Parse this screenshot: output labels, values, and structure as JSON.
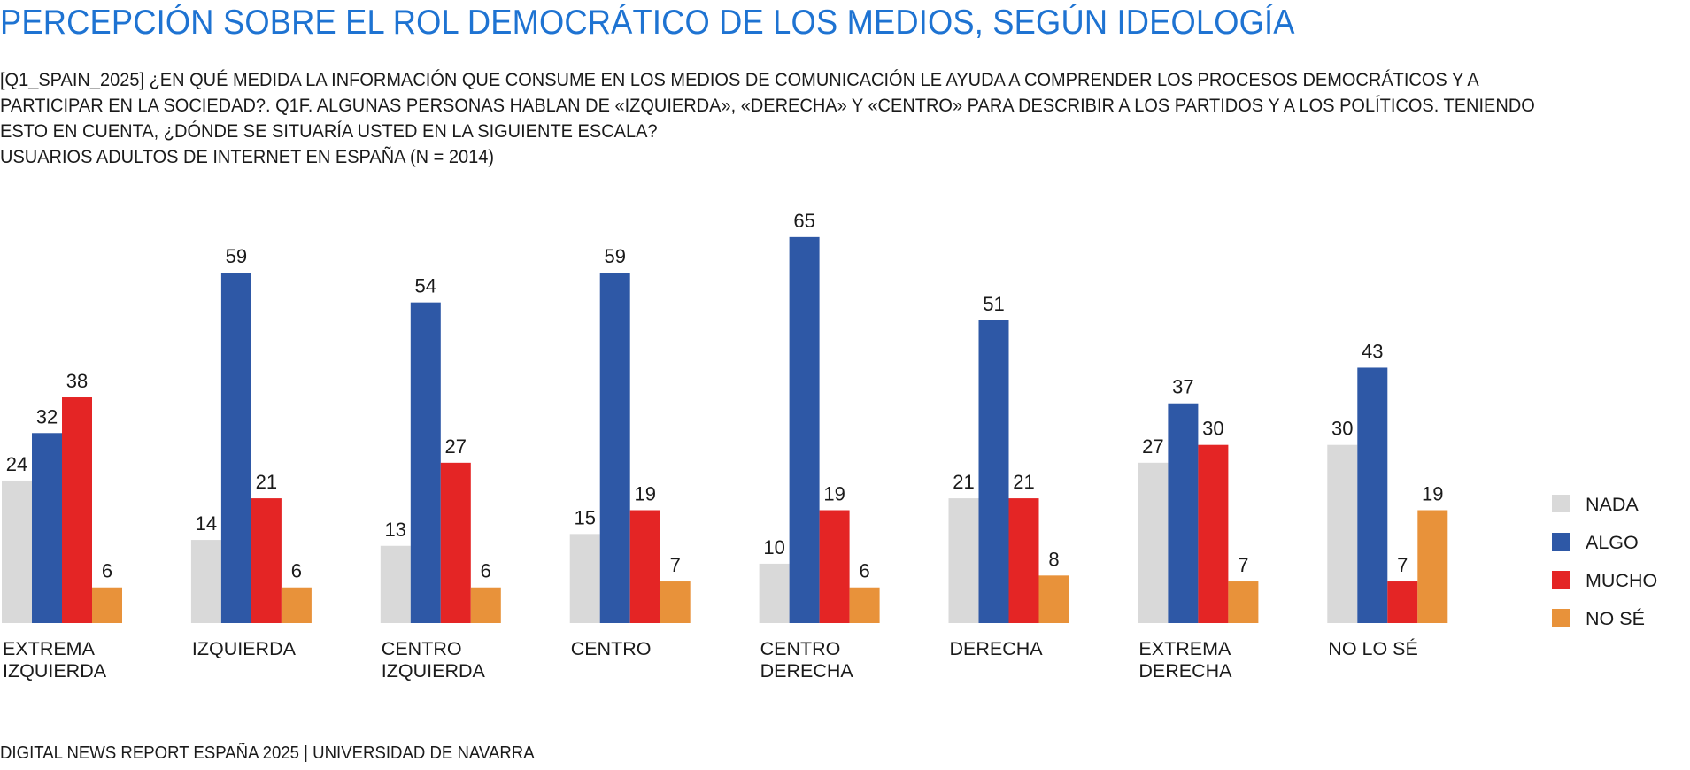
{
  "header": {
    "title": "PERCEPCIÓN SOBRE EL ROL DEMOCRÁTICO DE LOS MEDIOS, SEGÚN IDEOLOGÍA",
    "subtitle_lines": [
      "[Q1_SPAIN_2025] ¿EN QUÉ MEDIDA LA INFORMACIÓN QUE CONSUME EN LOS MEDIOS DE COMUNICACIÓN LE AYUDA A COMPRENDER LOS PROCESOS DEMOCRÁTICOS Y A",
      "PARTICIPAR EN LA SOCIEDAD?. Q1F. ALGUNAS PERSONAS HABLAN DE «IZQUIERDA», «DERECHA» Y «CENTRO» PARA DESCRIBIR A LOS PARTIDOS Y A LOS POLÍTICOS. TENIENDO",
      "ESTO EN CUENTA, ¿DÓNDE SE SITUARÍA USTED EN LA SIGUIENTE ESCALA?",
      "USUARIOS ADULTOS DE INTERNET EN ESPAÑA (N = 2014)"
    ]
  },
  "chart_data": {
    "type": "bar",
    "categories": [
      [
        "EXTREMA",
        "IZQUIERDA"
      ],
      [
        "IZQUIERDA"
      ],
      [
        "CENTRO",
        "IZQUIERDA"
      ],
      [
        "CENTRO"
      ],
      [
        "CENTRO",
        "DERECHA"
      ],
      [
        "DERECHA"
      ],
      [
        "EXTREMA",
        "DERECHA"
      ],
      [
        "NO LO SÉ"
      ]
    ],
    "series": [
      {
        "name": "NADA",
        "color": "#d9d9d9",
        "values": [
          24,
          14,
          13,
          15,
          10,
          21,
          27,
          30
        ]
      },
      {
        "name": "ALGO",
        "color": "#2e58a6",
        "values": [
          32,
          59,
          54,
          59,
          65,
          51,
          37,
          43
        ]
      },
      {
        "name": "MUCHO",
        "color": "#e42525",
        "values": [
          38,
          21,
          27,
          19,
          19,
          21,
          30,
          7
        ]
      },
      {
        "name": "NO SÉ",
        "color": "#e8923a",
        "values": [
          6,
          6,
          6,
          7,
          6,
          8,
          7,
          19
        ]
      }
    ],
    "data_labels": true,
    "grid": false,
    "legend_position": "right",
    "ylim": [
      0,
      65
    ]
  },
  "footer": {
    "source": "DIGITAL NEWS REPORT ESPAÑA 2025 | UNIVERSIDAD DE NAVARRA"
  }
}
